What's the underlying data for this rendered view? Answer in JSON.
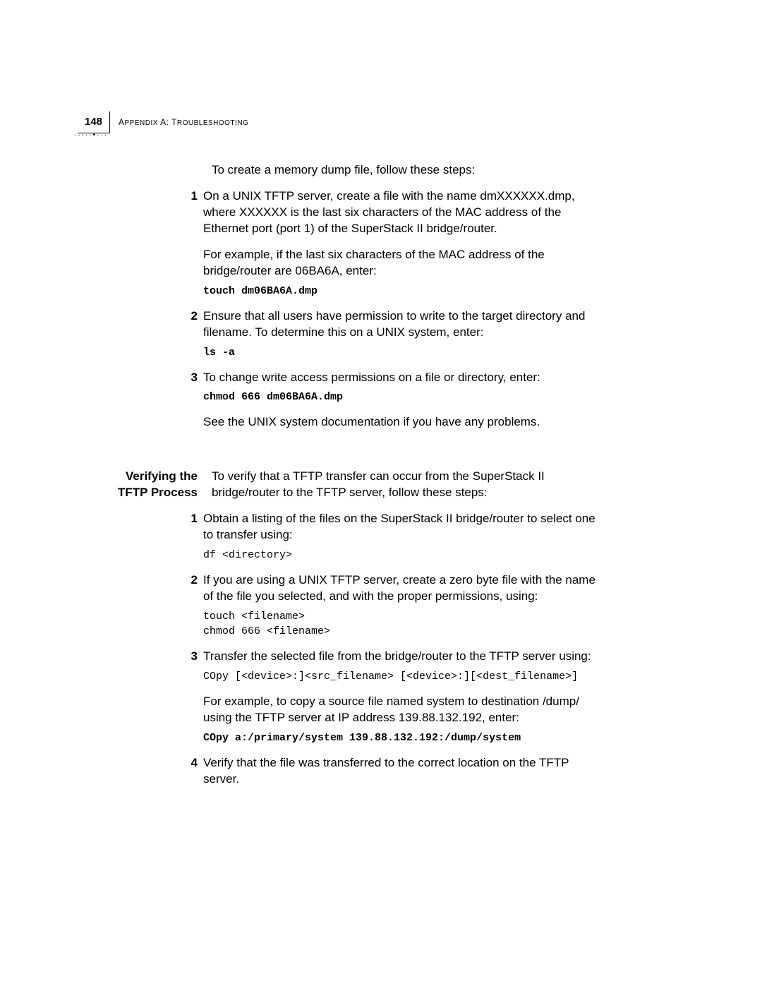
{
  "header": {
    "page_number": "148",
    "running_head_pre": "A",
    "running_head_small1": "PPENDIX",
    "running_head_mid": " A: T",
    "running_head_small2": "ROUBLESHOOTING"
  },
  "intro": "To create a memory dump file, follow these steps:",
  "step1_num": "1",
  "step1_p1": "On a UNIX TFTP server, create a file with the name dmXXXXXX.dmp, where XXXXXX is the last six characters of the MAC address of the Ethernet port (port 1) of the SuperStack II bridge/router.",
  "step1_p2": "For example, if the last six characters of the MAC address of the bridge/router are 06BA6A, enter:",
  "step1_cmd": "touch dm06BA6A.dmp",
  "step2_num": "2",
  "step2_p1": "Ensure that all users have permission to write to the target directory and filename. To determine this on a UNIX system, enter:",
  "step2_cmd": "ls -a",
  "step3_num": "3",
  "step3_p1": "To change write access permissions on a file or directory, enter:",
  "step3_cmd": "chmod 666 dm06BA6A.dmp",
  "step3_p2": "See the UNIX system documentation if you have any problems.",
  "section2_heading": "Verifying the TFTP Process",
  "section2_intro": "To verify that a TFTP transfer can occur from the SuperStack II bridge/router to the TFTP server, follow these steps:",
  "s2_step1_num": "1",
  "s2_step1_p1": "Obtain a listing of the files on the SuperStack II bridge/router to select one to transfer using:",
  "s2_step1_cmd": "df <directory>",
  "s2_step2_num": "2",
  "s2_step2_p1": "If you are using a UNIX TFTP server, create a zero byte file with the name of the file you selected, and with the proper permissions, using:",
  "s2_step2_cmd": "touch <filename>\nchmod 666 <filename>",
  "s2_step3_num": "3",
  "s2_step3_p1": "Transfer the selected file from the bridge/router to the TFTP server using:",
  "s2_step3_cmd": "COpy [<device>:]<src_filename> [<device>:][<dest_filename>]",
  "s2_step3_p2": "For example, to copy a source file named system to destination /dump/ using the TFTP server at IP address 139.88.132.192, enter:",
  "s2_step3_cmd2": "COpy a:/primary/system 139.88.132.192:/dump/system",
  "s2_step4_num": "4",
  "s2_step4_p1": "Verify that the file was transferred to the correct location on the TFTP server."
}
